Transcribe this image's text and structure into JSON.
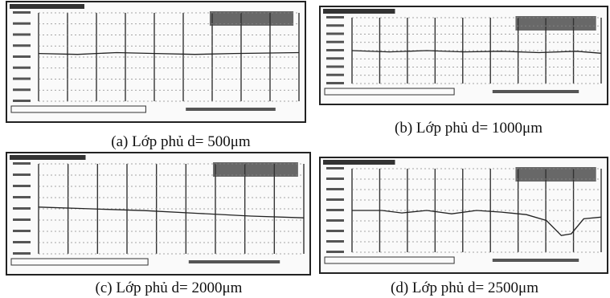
{
  "captions": [
    "(a) Lớp phủ d= 500μm",
    "(b) Lớp phủ d= 1000μm",
    "(c) Lớp phủ d= 2000μm",
    "(d) Lớp phủ d= 2500μm"
  ]
}
